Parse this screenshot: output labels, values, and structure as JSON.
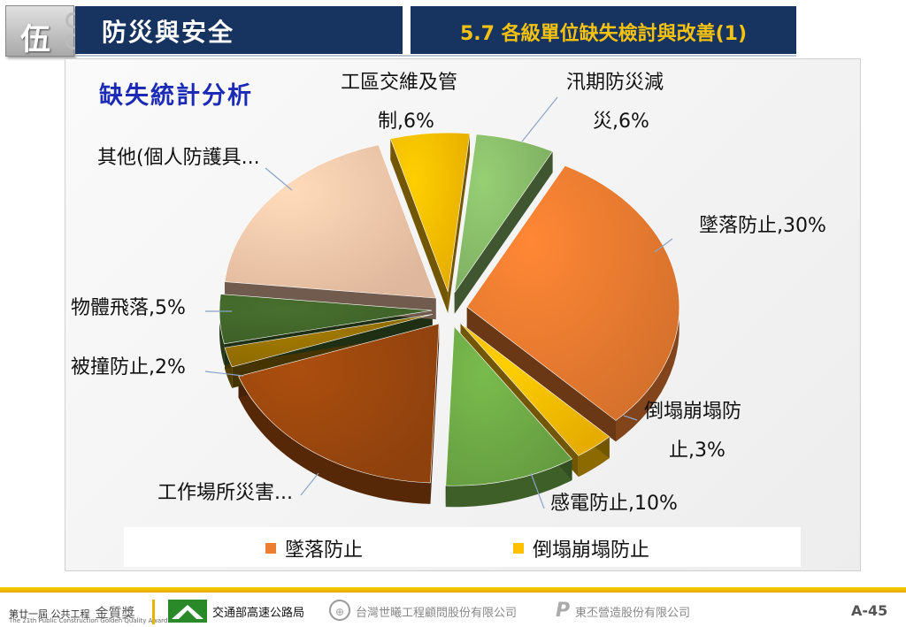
{
  "header": {
    "chapter": "伍",
    "section_title": "防災與安全",
    "page_title": "5.7 各級單位缺失檢討與改善(1)"
  },
  "chart_data": {
    "type": "pie",
    "title": "缺失統計分析",
    "slices": [
      {
        "name": "墜落防止",
        "label_lines": [
          "墜落防止,30%"
        ],
        "value": 30,
        "color": "#ed7d31"
      },
      {
        "name": "倒塌崩塌防止",
        "label_lines": [
          "倒塌崩塌防",
          "止,3%"
        ],
        "value": 3,
        "color": "#ffc000"
      },
      {
        "name": "感電防止",
        "label_lines": [
          "感電防止,10%"
        ],
        "value": 10,
        "color": "#70ad47"
      },
      {
        "name": "工作場所災害",
        "label_lines": [
          "工作場所災害..."
        ],
        "value": 19,
        "color": "#9e480e"
      },
      {
        "name": "被撞防止",
        "label_lines": [
          "被撞防止,2%"
        ],
        "value": 2,
        "color": "#997300"
      },
      {
        "name": "物體飛落",
        "label_lines": [
          "物體飛落,5%"
        ],
        "value": 5,
        "color": "#43682b"
      },
      {
        "name": "其他(個人防護具...",
        "label_lines": [
          "其他(個人防護具..."
        ],
        "value": 19,
        "color": "#f8cbad"
      },
      {
        "name": "工區交維及管制",
        "label_lines": [
          "工區交維及管",
          "制,6%"
        ],
        "value": 6,
        "color": "#ffc000"
      },
      {
        "name": "汛期防災減災",
        "label_lines": [
          "汛期防災減",
          "災,6%"
        ],
        "value": 6,
        "color": "#8bc06b"
      }
    ],
    "legend": [
      {
        "label": "墜落防止",
        "color": "#ed7d31"
      },
      {
        "label": "倒塌崩塌防止",
        "color": "#ffc000"
      }
    ],
    "legend_position": "bottom"
  },
  "footer": {
    "award_line": "第廿一屆 公共工程",
    "award_name": "金質獎",
    "award_sub": "The 21th Public Construction Golden Quality Award",
    "org1": "交通部高速公路局",
    "org2": "台灣世曦工程顧問股份有限公司",
    "org3": "東丕營造股份有限公司",
    "page_number": "A-45"
  }
}
